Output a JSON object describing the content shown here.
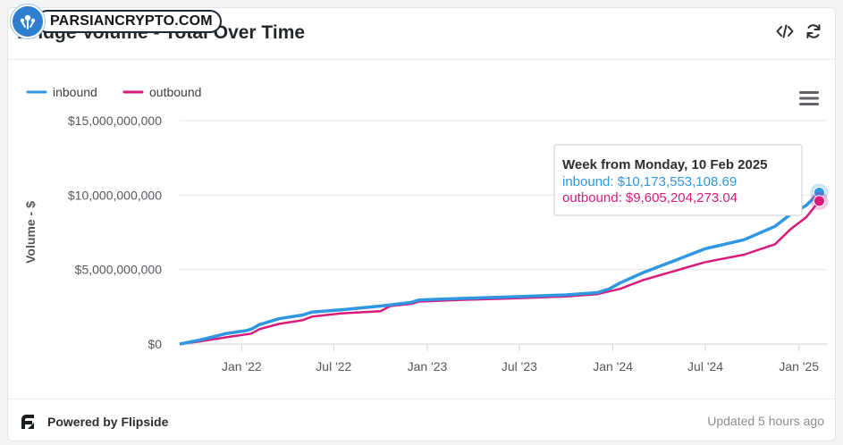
{
  "watermark": {
    "text": "PARSIANCRYPTO.COM"
  },
  "header": {
    "title": "Bridge Volume - Total Over Time",
    "embed_icon": "code-icon",
    "refresh_icon": "refresh-icon"
  },
  "colors": {
    "inbound": "#2f97e2",
    "outbound": "#d81b7a",
    "grid": "#e6e6e6"
  },
  "footer": {
    "powered_by": "Powered by Flipside",
    "updated": "Updated 5 hours ago"
  },
  "tooltip": {
    "title": "Week from Monday, 10 Feb 2025",
    "inbound": "inbound: $10,173,553,108.69",
    "outbound": "outbound: $9,605,204,273.04"
  },
  "chart_data": {
    "type": "line",
    "title": "Bridge Volume - Total Over Time",
    "ylabel": "Volume - $",
    "xlabel": "",
    "ylim": [
      0,
      15000000000
    ],
    "yticks": [
      0,
      5000000000,
      10000000000,
      15000000000
    ],
    "ytick_labels": [
      "$0",
      "$5,000,000,000",
      "$10,000,000,000",
      "$15,000,000,000"
    ],
    "xlim": [
      "2021-09-01",
      "2025-02-25"
    ],
    "xticks": [
      "2022-01-01",
      "2022-07-01",
      "2023-01-01",
      "2023-07-01",
      "2024-01-01",
      "2024-07-01",
      "2025-01-01"
    ],
    "xtick_labels": [
      "Jan '22",
      "Jul '22",
      "Jan '23",
      "Jul '23",
      "Jan '24",
      "Jul '24",
      "Jan '25"
    ],
    "grid": true,
    "legend_position": "top-left",
    "series": [
      {
        "name": "inbound",
        "points": [
          [
            "2021-09-01",
            0
          ],
          [
            "2021-10-15",
            300000000
          ],
          [
            "2021-12-01",
            700000000
          ],
          [
            "2022-01-10",
            900000000
          ],
          [
            "2022-01-20",
            1000000000
          ],
          [
            "2022-02-05",
            1300000000
          ],
          [
            "2022-03-15",
            1700000000
          ],
          [
            "2022-05-01",
            1950000000
          ],
          [
            "2022-05-20",
            2150000000
          ],
          [
            "2022-07-15",
            2300000000
          ],
          [
            "2022-10-01",
            2550000000
          ],
          [
            "2022-12-01",
            2800000000
          ],
          [
            "2022-12-15",
            2950000000
          ],
          [
            "2023-01-15",
            3000000000
          ],
          [
            "2023-06-01",
            3150000000
          ],
          [
            "2023-10-01",
            3300000000
          ],
          [
            "2023-12-01",
            3450000000
          ],
          [
            "2023-12-25",
            3700000000
          ],
          [
            "2024-01-15",
            4100000000
          ],
          [
            "2024-03-01",
            4800000000
          ],
          [
            "2024-05-01",
            5600000000
          ],
          [
            "2024-07-01",
            6400000000
          ],
          [
            "2024-09-15",
            7000000000
          ],
          [
            "2024-11-15",
            7900000000
          ],
          [
            "2024-12-15",
            8700000000
          ],
          [
            "2025-01-15",
            9300000000
          ],
          [
            "2025-02-10",
            10173553108.69
          ]
        ]
      },
      {
        "name": "outbound",
        "points": [
          [
            "2021-09-01",
            0
          ],
          [
            "2021-10-15",
            200000000
          ],
          [
            "2021-12-01",
            450000000
          ],
          [
            "2022-01-10",
            650000000
          ],
          [
            "2022-01-20",
            700000000
          ],
          [
            "2022-02-05",
            1000000000
          ],
          [
            "2022-03-15",
            1350000000
          ],
          [
            "2022-05-01",
            1600000000
          ],
          [
            "2022-05-20",
            1850000000
          ],
          [
            "2022-07-15",
            2050000000
          ],
          [
            "2022-10-01",
            2200000000
          ],
          [
            "2022-10-20",
            2550000000
          ],
          [
            "2022-12-01",
            2700000000
          ],
          [
            "2022-12-15",
            2850000000
          ],
          [
            "2023-03-01",
            2950000000
          ],
          [
            "2023-06-01",
            3050000000
          ],
          [
            "2023-10-01",
            3200000000
          ],
          [
            "2023-12-01",
            3350000000
          ],
          [
            "2024-01-15",
            3700000000
          ],
          [
            "2024-03-01",
            4300000000
          ],
          [
            "2024-05-01",
            4900000000
          ],
          [
            "2024-07-01",
            5500000000
          ],
          [
            "2024-09-15",
            6000000000
          ],
          [
            "2024-11-15",
            6700000000
          ],
          [
            "2024-12-15",
            7700000000
          ],
          [
            "2025-01-15",
            8500000000
          ],
          [
            "2025-02-10",
            9605204273.04
          ]
        ]
      }
    ]
  }
}
